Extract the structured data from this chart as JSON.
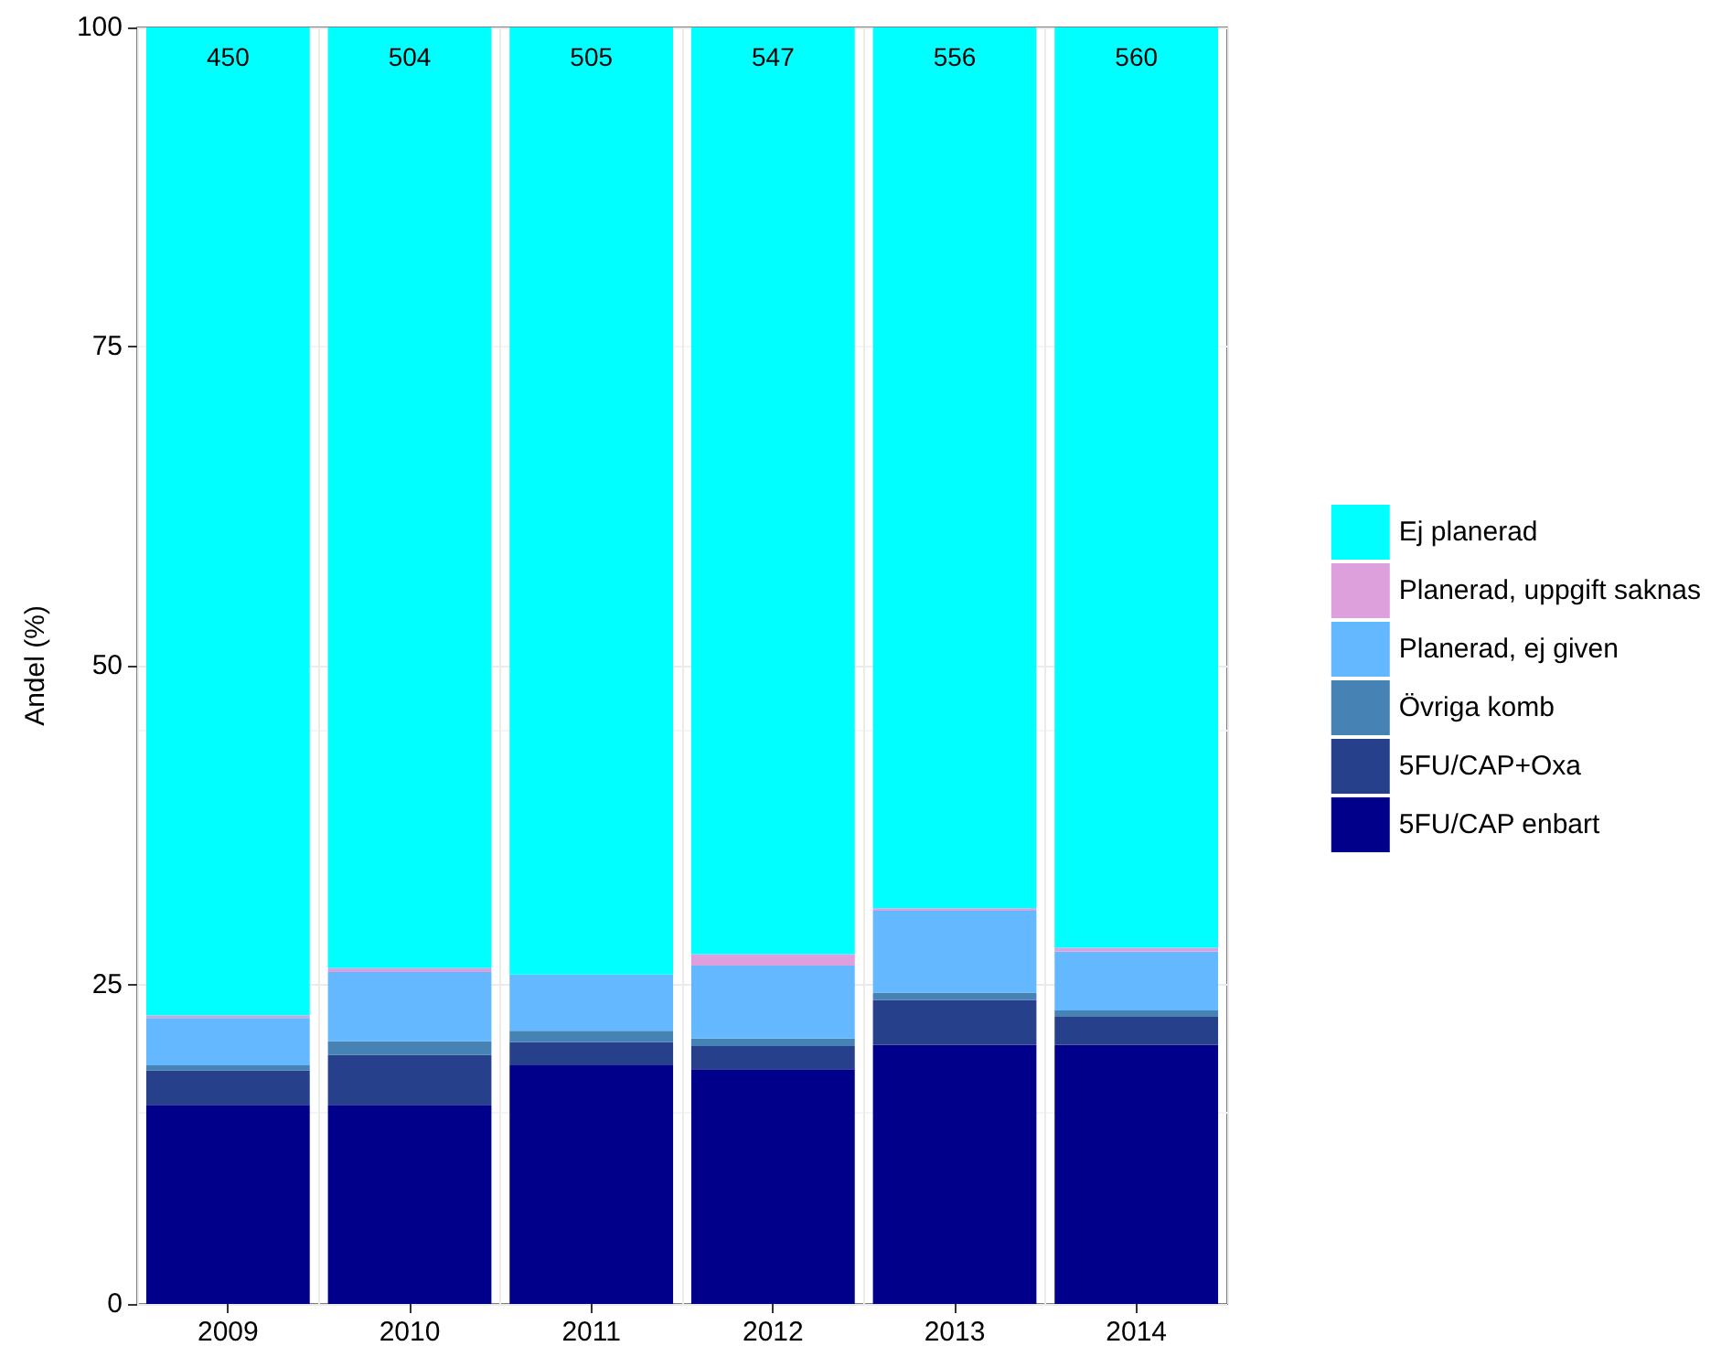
{
  "chart_data": {
    "type": "bar",
    "stacked": true,
    "ylabel": "Andel (%)",
    "categories": [
      "2009",
      "2010",
      "2011",
      "2012",
      "2013",
      "2014"
    ],
    "series": [
      {
        "name": "5FU/CAP enbart",
        "color": "#00008b",
        "values": [
          15.6,
          15.6,
          18.7,
          18.4,
          20.3,
          20.3
        ]
      },
      {
        "name": "5FU/CAP+Oxa",
        "color": "#27408b",
        "values": [
          2.7,
          3.9,
          1.8,
          1.8,
          3.5,
          2.2
        ]
      },
      {
        "name": "Övriga komb",
        "color": "#4682b4",
        "values": [
          0.4,
          1.1,
          0.9,
          0.6,
          0.6,
          0.5
        ]
      },
      {
        "name": "Planerad, ej given",
        "color": "#63b8ff",
        "values": [
          3.7,
          5.4,
          4.4,
          5.7,
          6.4,
          4.6
        ]
      },
      {
        "name": "Planerad, uppgift saknas",
        "color": "#dda0dd",
        "values": [
          0.2,
          0.3,
          0,
          0.9,
          0.2,
          0.3
        ]
      },
      {
        "name": "Ej planerad",
        "color": "#00ffff",
        "values": [
          77.4,
          73.7,
          74.2,
          72.6,
          69.0,
          72.1
        ]
      }
    ],
    "ylim": [
      0,
      100
    ],
    "yticks": [
      0,
      25,
      50,
      75,
      100
    ],
    "grid": true,
    "legend": "right",
    "annotations": [
      "450",
      "504",
      "505",
      "547",
      "556",
      "560"
    ]
  }
}
